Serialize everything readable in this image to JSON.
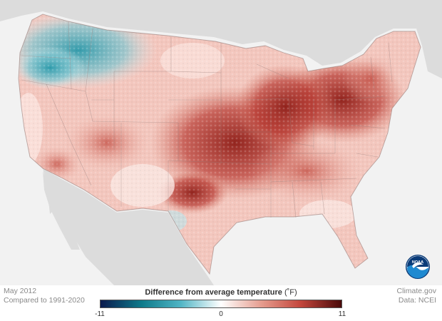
{
  "caption": {
    "date": "May 2012",
    "baseline": "Compared to 1991-2020",
    "credit": "Climate.gov",
    "source": "Data: NCEI"
  },
  "legend": {
    "title": "Difference from average temperature",
    "unit": "(˚F)",
    "min_label": "-11",
    "mid_label": "0",
    "max_label": "11",
    "colors": [
      "#0b1a4d",
      "#0e7a8a",
      "#4fb4c4",
      "#ffffff",
      "#e59b8d",
      "#c3463c",
      "#4a0a0a"
    ]
  },
  "logo": {
    "name": "NOAA",
    "icon": "noaa-logo"
  }
}
